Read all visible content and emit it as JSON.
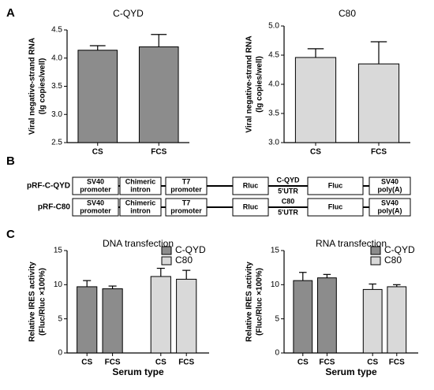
{
  "panel_labels": [
    "A",
    "B",
    "C"
  ],
  "chart_data": [
    {
      "type": "bar",
      "title": "C-QYD",
      "ylabel": [
        "Viral negative-strand RNA",
        "(lg copies/well)"
      ],
      "categories": [
        "CS",
        "FCS"
      ],
      "values": [
        4.14,
        4.2
      ],
      "errors": [
        0.08,
        0.22
      ],
      "color": "#8c8c8c",
      "ylim": [
        2.5,
        4.5
      ],
      "yticks": [
        2.5,
        {
          "value": 3,
          "label": "3.0"
        },
        3.5,
        {
          "value": 4,
          "label": "4.0"
        },
        4.5
      ]
    },
    {
      "type": "bar",
      "title": "C80",
      "ylabel": [
        "Viral negative-strand RNA",
        "(lg copies/well)"
      ],
      "categories": [
        "CS",
        "FCS"
      ],
      "values": [
        4.46,
        4.35
      ],
      "errors": [
        0.15,
        0.38
      ],
      "color": "#d9d9d9",
      "ylim": [
        3,
        5
      ],
      "yticks": [
        {
          "value": 3,
          "label": "3.0"
        },
        3.5,
        {
          "value": 4,
          "label": "4.0"
        },
        4.5,
        {
          "value": 5,
          "label": "5.0"
        }
      ]
    },
    {
      "type": "grouped_bar",
      "title": "DNA transfection",
      "ylabel": [
        "Relative IRES activity",
        "(Fluc/Rluc ×100%)"
      ],
      "xlabel": "Serum type",
      "categories": [
        "CS",
        "FCS",
        "CS",
        "FCS"
      ],
      "series": [
        {
          "name": "C-QYD",
          "color": "#8c8c8c",
          "values": [
            9.7,
            9.4,
            null,
            null
          ],
          "errors": [
            0.9,
            0.4,
            null,
            null
          ]
        },
        {
          "name": "C80",
          "color": "#d9d9d9",
          "values": [
            null,
            null,
            11.2,
            10.8
          ],
          "errors": [
            null,
            null,
            1.2,
            1.3
          ]
        }
      ],
      "ylim": [
        0,
        15
      ],
      "yticks": [
        0,
        5,
        10,
        15
      ],
      "legend": "top-right"
    },
    {
      "type": "grouped_bar",
      "title": "RNA transfection",
      "ylabel": [
        "Relative IRES activity",
        "(Fluc/Rluc ×100%)"
      ],
      "xlabel": "Serum type",
      "categories": [
        "CS",
        "FCS",
        "CS",
        "FCS"
      ],
      "series": [
        {
          "name": "C-QYD",
          "color": "#8c8c8c",
          "values": [
            10.6,
            11.0,
            null,
            null
          ],
          "errors": [
            1.2,
            0.5,
            null,
            null
          ]
        },
        {
          "name": "C80",
          "color": "#d9d9d9",
          "values": [
            null,
            null,
            9.3,
            9.7
          ],
          "errors": [
            null,
            null,
            0.8,
            0.3
          ]
        }
      ],
      "ylim": [
        0,
        15
      ],
      "yticks": [
        0,
        5,
        10,
        15
      ],
      "legend": "top-right"
    }
  ],
  "diagram": {
    "rows": [
      {
        "label": "pRF-C-QYD",
        "boxes": [
          [
            "SV40",
            "promoter"
          ],
          [
            "Chimeric",
            "intron"
          ],
          [
            "T7",
            "promoter"
          ],
          [
            "Rluc"
          ],
          [
            "Fluc"
          ],
          [
            "SV40",
            "poly(A)"
          ]
        ],
        "utr": [
          "C-QYD",
          "5'UTR"
        ]
      },
      {
        "label": "pRF-C80",
        "boxes": [
          [
            "SV40",
            "promoter"
          ],
          [
            "Chimeric",
            "intron"
          ],
          [
            "T7",
            "promoter"
          ],
          [
            "Rluc"
          ],
          [
            "Fluc"
          ],
          [
            "SV40",
            "poly(A)"
          ]
        ],
        "utr": [
          "C80",
          "5'UTR"
        ]
      }
    ]
  }
}
